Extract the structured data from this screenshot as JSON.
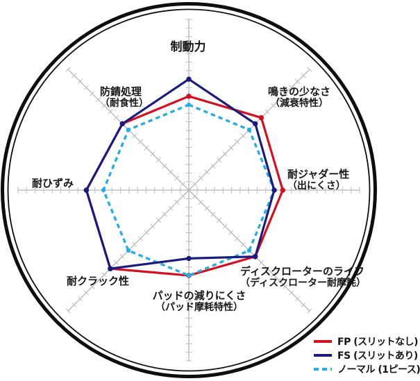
{
  "chart_data": {
    "type": "radar",
    "title": "",
    "axes": [
      {
        "label": "制動力",
        "sub": ""
      },
      {
        "label": "鳴きの少なさ",
        "sub": "（減衰特性）"
      },
      {
        "label": "耐ジャダー性",
        "sub": "（出にくさ）"
      },
      {
        "label": "ディスクローターのライフ",
        "sub": "（ディスクローター耐摩耗）"
      },
      {
        "label": "パッドの減りにくさ",
        "sub": "（パッド摩耗特性）"
      },
      {
        "label": "耐クラック性",
        "sub": ""
      },
      {
        "label": "耐ひずみ",
        "sub": ""
      },
      {
        "label": "防錆処理",
        "sub": "（耐食性）"
      }
    ],
    "series": [
      {
        "id": "fp",
        "name": "FP (スリットなし)",
        "color": "#d21020",
        "dash": false,
        "values": [
          11,
          12,
          11,
          11,
          10,
          13,
          12,
          11
        ]
      },
      {
        "id": "fs",
        "name": "FS (スリットあり)",
        "color": "#1b1b7d",
        "dash": false,
        "values": [
          13,
          11,
          10,
          11,
          8,
          13,
          12,
          11
        ]
      },
      {
        "id": "normal",
        "name": "ノーマル (1ピース)",
        "color": "#2aace3",
        "dash": true,
        "values": [
          10,
          10,
          10,
          10,
          10,
          10,
          10,
          10
        ]
      }
    ],
    "scale": {
      "min": 0,
      "max": 20,
      "tick_step": 1
    },
    "grid": "8 radial axes with perpendicular tick marks, double black enclosing circle",
    "legend_position": "bottom-right",
    "colors": {
      "axis": "#b4b4b4",
      "tick": "#c0c0c0",
      "circle": "#0e0e0e",
      "text": "#161616",
      "background": "#ffffff"
    }
  }
}
